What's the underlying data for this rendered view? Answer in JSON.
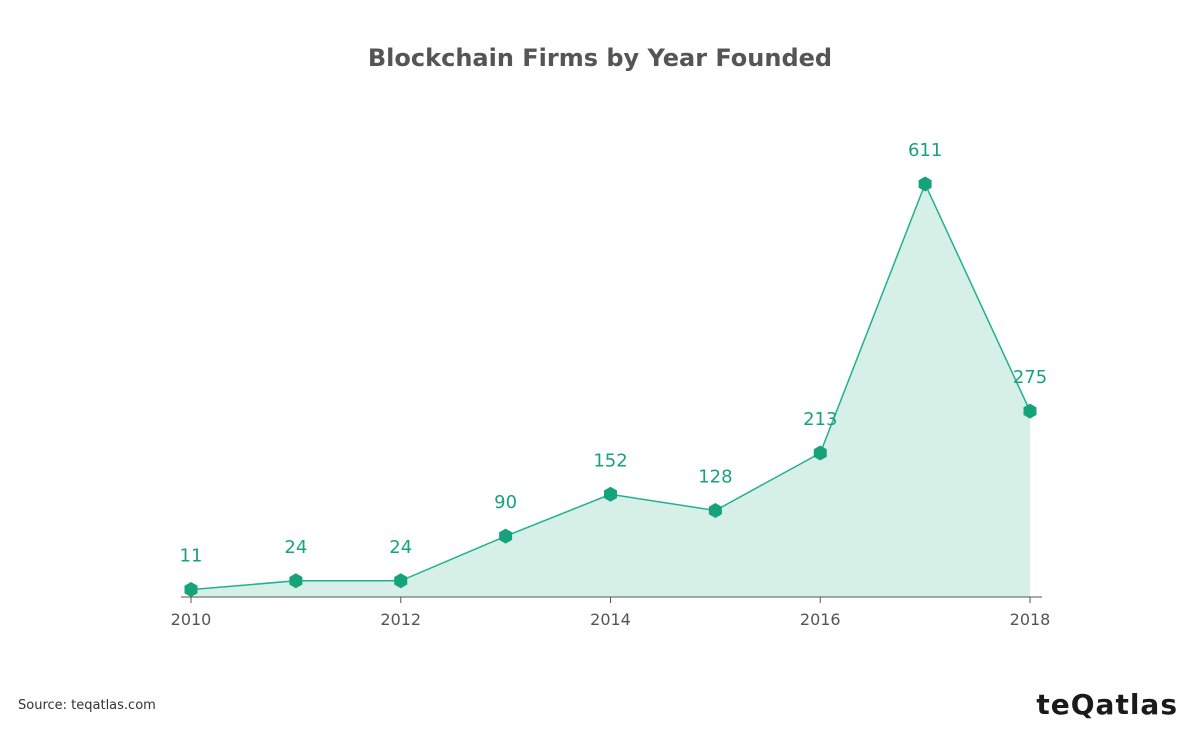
{
  "chart_data": {
    "type": "area",
    "title": "Blockchain Firms by Year Founded",
    "x": [
      2010,
      2011,
      2012,
      2013,
      2014,
      2015,
      2016,
      2017,
      2018
    ],
    "values": [
      11,
      24,
      24,
      90,
      152,
      128,
      213,
      611,
      275
    ],
    "x_tick_labels": [
      "2010",
      "2012",
      "2014",
      "2016",
      "2018"
    ],
    "xlabel": "",
    "ylabel": "",
    "ylim": [
      0,
      611
    ],
    "grid": false,
    "data_labels": true
  },
  "colors": {
    "line": "#20b28a",
    "fill": "#d6efe7",
    "marker": "#16a37b",
    "label": "#16a37b",
    "axis": "#555555",
    "tick_text": "#555555"
  },
  "footer": {
    "source": "Source: teqatlas.com",
    "logo": "teQatlas"
  }
}
